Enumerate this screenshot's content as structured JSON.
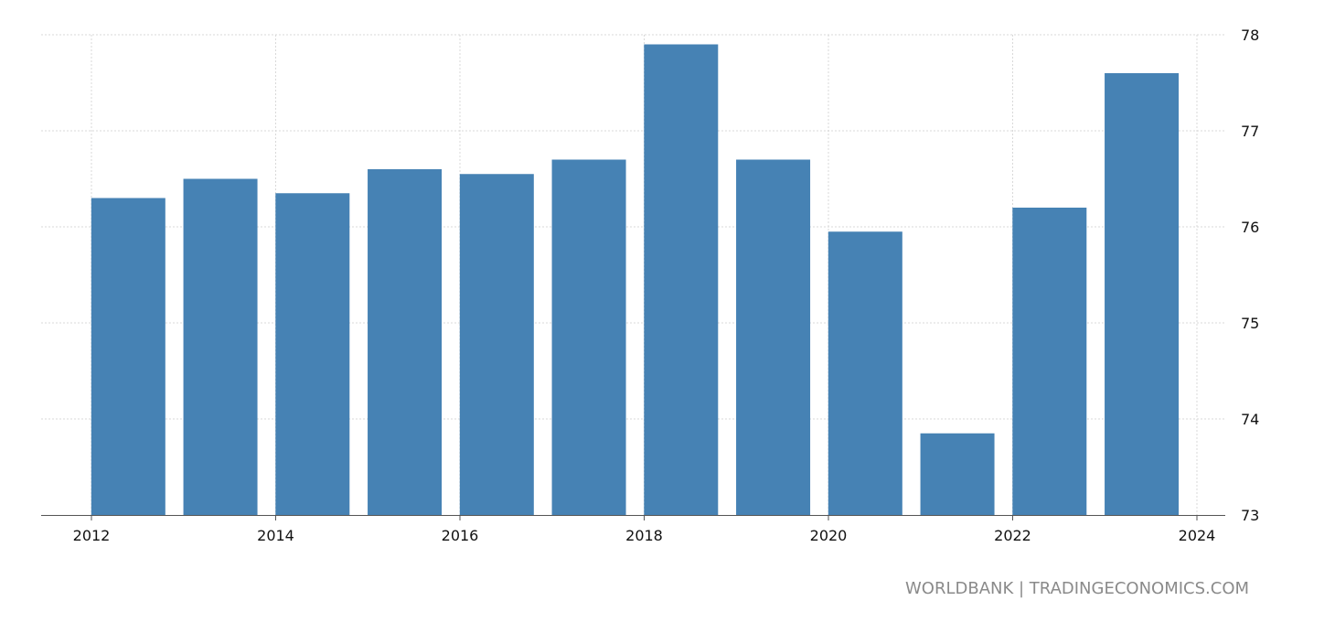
{
  "source_text": "WORLDBANK | TRADINGECONOMICS.COM",
  "chart_data": {
    "type": "bar",
    "title": "",
    "xlabel": "",
    "ylabel": "",
    "x_ticks": [
      "2012",
      "2014",
      "2016",
      "2018",
      "2020",
      "2022",
      "2024"
    ],
    "y_ticks": [
      "73",
      "74",
      "75",
      "76",
      "77",
      "78"
    ],
    "ylim": [
      73,
      78
    ],
    "xlim": [
      2012,
      2024
    ],
    "grid": true,
    "y_axis_position": "right",
    "bar_color": "#4682b4",
    "grid_color": "#d9d9d9",
    "bars": [
      {
        "x": 2012.4,
        "value": 76.3
      },
      {
        "x": 2013.4,
        "value": 76.5
      },
      {
        "x": 2014.4,
        "value": 76.35
      },
      {
        "x": 2015.4,
        "value": 76.6
      },
      {
        "x": 2016.4,
        "value": 76.55
      },
      {
        "x": 2017.4,
        "value": 76.7
      },
      {
        "x": 2018.4,
        "value": 77.9
      },
      {
        "x": 2019.4,
        "value": 76.7
      },
      {
        "x": 2020.4,
        "value": 75.95
      },
      {
        "x": 2021.4,
        "value": 73.85
      },
      {
        "x": 2022.4,
        "value": 76.2
      },
      {
        "x": 2023.4,
        "value": 77.6
      }
    ]
  }
}
